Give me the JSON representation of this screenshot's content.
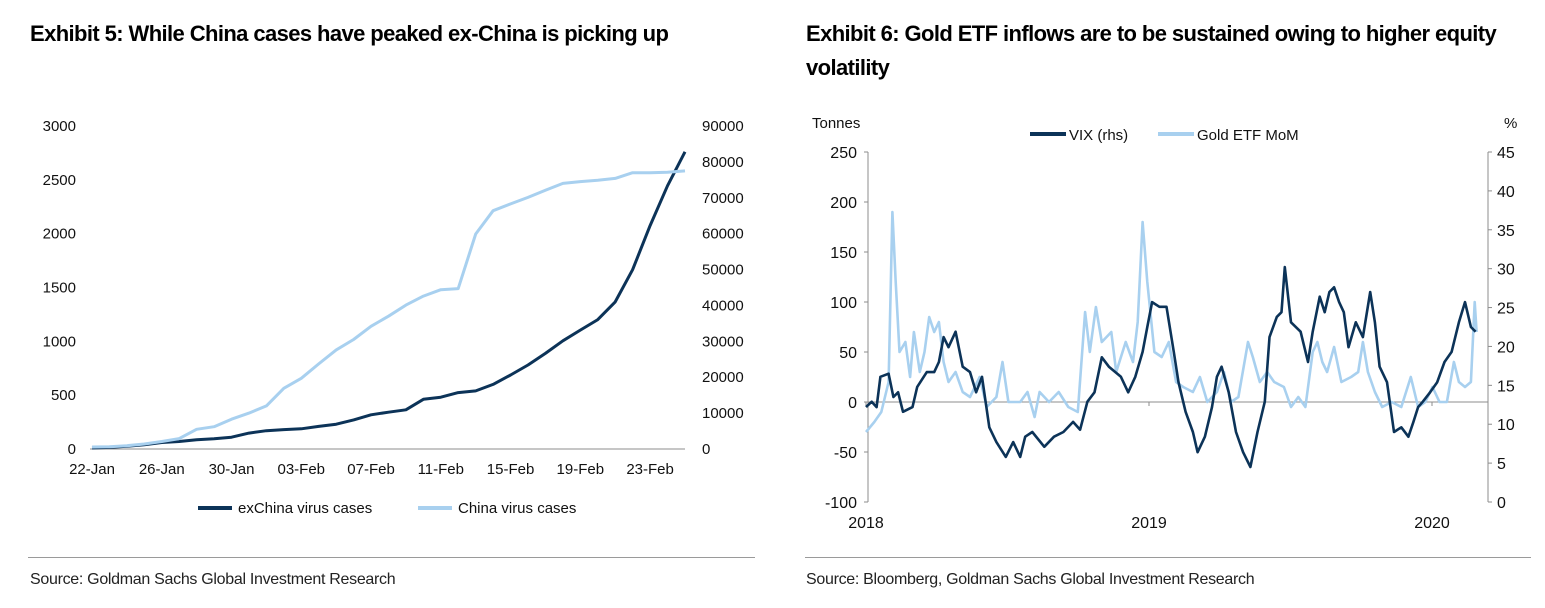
{
  "colors": {
    "dark": "#0c3358",
    "light": "#a8d0ef",
    "axis": "#8c8c8c"
  },
  "chart_data": [
    {
      "type": "line",
      "title": "Exhibit 5: While China cases have peaked ex-China is picking up",
      "source": "Source: Goldman Sachs Global Investment Research",
      "x_start": "22-Jan",
      "x_tick_labels": [
        "22-Jan",
        "26-Jan",
        "30-Jan",
        "03-Feb",
        "07-Feb",
        "11-Feb",
        "15-Feb",
        "19-Feb",
        "23-Feb"
      ],
      "x_tick_days": [
        0,
        4,
        8,
        12,
        16,
        20,
        24,
        28,
        32
      ],
      "y_left": {
        "ticks": [
          0,
          500,
          1000,
          1500,
          2000,
          2500,
          3000
        ],
        "range": [
          0,
          3000
        ]
      },
      "y_right": {
        "ticks": [
          0,
          10000,
          20000,
          30000,
          40000,
          50000,
          60000,
          70000,
          80000,
          90000
        ],
        "range": [
          0,
          90000
        ]
      },
      "legend_position": "bottom",
      "series": [
        {
          "name": "exChina virus cases",
          "axis": "left",
          "color_key": "dark",
          "values": [
            9,
            15,
            25,
            40,
            60,
            70,
            86,
            95,
            110,
            148,
            170,
            180,
            188,
            210,
            230,
            270,
            318,
            342,
            364,
            462,
            481,
            524,
            540,
            600,
            687,
            780,
            888,
            1005,
            1104,
            1202,
            1366,
            1665,
            2075,
            2445,
            2760
          ]
        },
        {
          "name": "China virus cases",
          "axis": "right",
          "color_key": "light",
          "values": [
            550,
            640,
            920,
            1400,
            2100,
            2900,
            5500,
            6200,
            8300,
            10000,
            12000,
            16900,
            19700,
            23700,
            27600,
            30500,
            34200,
            37000,
            40100,
            42600,
            44400,
            44700,
            59900,
            66400,
            68300,
            70100,
            72100,
            74000,
            74500,
            74900,
            75400,
            77000,
            77000,
            77100,
            77500
          ]
        }
      ]
    },
    {
      "type": "line",
      "title": "Exhibit 6: Gold ETF inflows are to be sustained owing to higher equity volatility",
      "source": "Source: Bloomberg, Goldman Sachs Global Investment Research",
      "ylabel_left": "Tonnes",
      "ylabel_right": "%",
      "x_tick_labels": [
        "2018",
        "2019",
        "2020"
      ],
      "x_unit": "months since Jan 2018",
      "x_tick_months": [
        0,
        12,
        24
      ],
      "y_left": {
        "ticks": [
          -100,
          -50,
          0,
          50,
          100,
          150,
          200,
          250
        ],
        "range": [
          -100,
          250
        ]
      },
      "y_right": {
        "ticks": [
          0,
          5,
          10,
          15,
          20,
          25,
          30,
          35,
          40,
          45
        ],
        "range": [
          0,
          45
        ]
      },
      "legend_position": "top",
      "series": [
        {
          "name": "VIX (rhs)",
          "axis": "right",
          "color_key": "dark",
          "x": [
            0,
            0.24,
            0.45,
            0.61,
            0.96,
            1.16,
            1.36,
            1.57,
            1.97,
            2.17,
            2.58,
            2.89,
            3.09,
            3.29,
            3.5,
            3.8,
            4.1,
            4.41,
            4.67,
            4.92,
            5.23,
            5.53,
            5.93,
            6.24,
            6.54,
            6.75,
            7.05,
            7.56,
            7.97,
            8.37,
            8.78,
            9.08,
            9.39,
            9.69,
            10.0,
            10.3,
            10.81,
            11.12,
            11.42,
            11.73,
            11.93,
            12.13,
            12.44,
            12.74,
            13.05,
            13.25,
            13.55,
            13.86,
            14.06,
            14.37,
            14.67,
            14.88,
            15.08,
            15.38,
            15.69,
            15.99,
            16.3,
            16.6,
            16.91,
            17.11,
            17.42,
            17.62,
            17.76,
            18.02,
            18.43,
            18.74,
            18.94,
            19.24,
            19.45,
            19.65,
            19.85,
            20.06,
            20.26,
            20.46,
            20.77,
            21.07,
            21.38,
            21.58,
            21.78,
            22.09,
            22.39,
            22.7,
            23.0,
            23.21,
            23.41,
            23.61,
            23.92,
            24.22,
            24.53,
            24.83,
            25.14,
            25.4,
            25.65,
            25.85
          ],
          "values": [
            12.2,
            12.9,
            12.2,
            16.1,
            16.5,
            13.5,
            14.1,
            11.6,
            12.2,
            14.8,
            16.7,
            16.7,
            18.0,
            21.2,
            19.9,
            21.9,
            17.4,
            16.7,
            14.1,
            16.1,
            9.6,
            7.7,
            5.8,
            7.7,
            5.8,
            8.4,
            9.0,
            7.1,
            8.4,
            9.0,
            10.3,
            9.3,
            12.9,
            14.1,
            18.6,
            17.4,
            16.1,
            14.1,
            16.1,
            19.3,
            22.5,
            25.7,
            25.1,
            25.1,
            19.3,
            15.4,
            11.6,
            9.0,
            6.4,
            8.4,
            12.2,
            16.1,
            17.4,
            14.1,
            9.0,
            6.4,
            4.5,
            9.0,
            12.9,
            21.2,
            23.8,
            24.4,
            30.2,
            23.1,
            21.9,
            18.0,
            21.9,
            26.4,
            24.4,
            27.0,
            27.6,
            25.7,
            24.4,
            19.9,
            23.1,
            21.2,
            27.0,
            23.1,
            17.4,
            15.4,
            9.0,
            9.6,
            8.4,
            10.3,
            12.2,
            12.9,
            14.1,
            15.4,
            18.0,
            19.3,
            23.1,
            25.7,
            22.5,
            21.9
          ]
        },
        {
          "name": "Gold ETF MoM",
          "axis": "left",
          "color_key": "light",
          "x": [
            0,
            0.35,
            0.65,
            0.96,
            1.12,
            1.26,
            1.42,
            1.67,
            1.87,
            2.03,
            2.28,
            2.48,
            2.68,
            2.89,
            3.09,
            3.29,
            3.5,
            3.8,
            4.1,
            4.41,
            4.82,
            5.12,
            5.53,
            5.79,
            6.04,
            6.54,
            6.85,
            7.15,
            7.36,
            7.76,
            8.17,
            8.58,
            8.98,
            9.29,
            9.49,
            9.75,
            10.0,
            10.4,
            10.61,
            11.01,
            11.32,
            11.52,
            11.73,
            11.93,
            12.23,
            12.54,
            12.84,
            13.15,
            13.45,
            13.86,
            14.16,
            14.47,
            14.88,
            15.18,
            15.48,
            15.79,
            16.2,
            16.4,
            16.7,
            17.01,
            17.31,
            17.72,
            18.02,
            18.33,
            18.63,
            18.94,
            19.14,
            19.35,
            19.55,
            19.85,
            20.16,
            20.57,
            20.87,
            21.07,
            21.28,
            21.58,
            21.89,
            22.29,
            22.7,
            23.1,
            23.41,
            23.71,
            24.02,
            24.32,
            24.63,
            24.93,
            25.14,
            25.4,
            25.65,
            25.81,
            25.89
          ],
          "values": [
            -30,
            -20,
            -10,
            20,
            190,
            120,
            50,
            60,
            25,
            70,
            30,
            50,
            85,
            70,
            80,
            40,
            20,
            30,
            10,
            5,
            25,
            -5,
            5,
            40,
            0,
            0,
            10,
            -15,
            10,
            0,
            10,
            -5,
            -10,
            90,
            50,
            95,
            60,
            70,
            30,
            60,
            40,
            80,
            180,
            120,
            50,
            45,
            60,
            20,
            15,
            10,
            25,
            0,
            10,
            30,
            0,
            5,
            60,
            45,
            20,
            30,
            20,
            15,
            -5,
            5,
            -5,
            50,
            60,
            40,
            30,
            55,
            20,
            25,
            30,
            60,
            30,
            10,
            -5,
            0,
            -5,
            25,
            -5,
            0,
            15,
            0,
            0,
            40,
            20,
            15,
            20,
            100,
            70
          ]
        }
      ]
    }
  ]
}
